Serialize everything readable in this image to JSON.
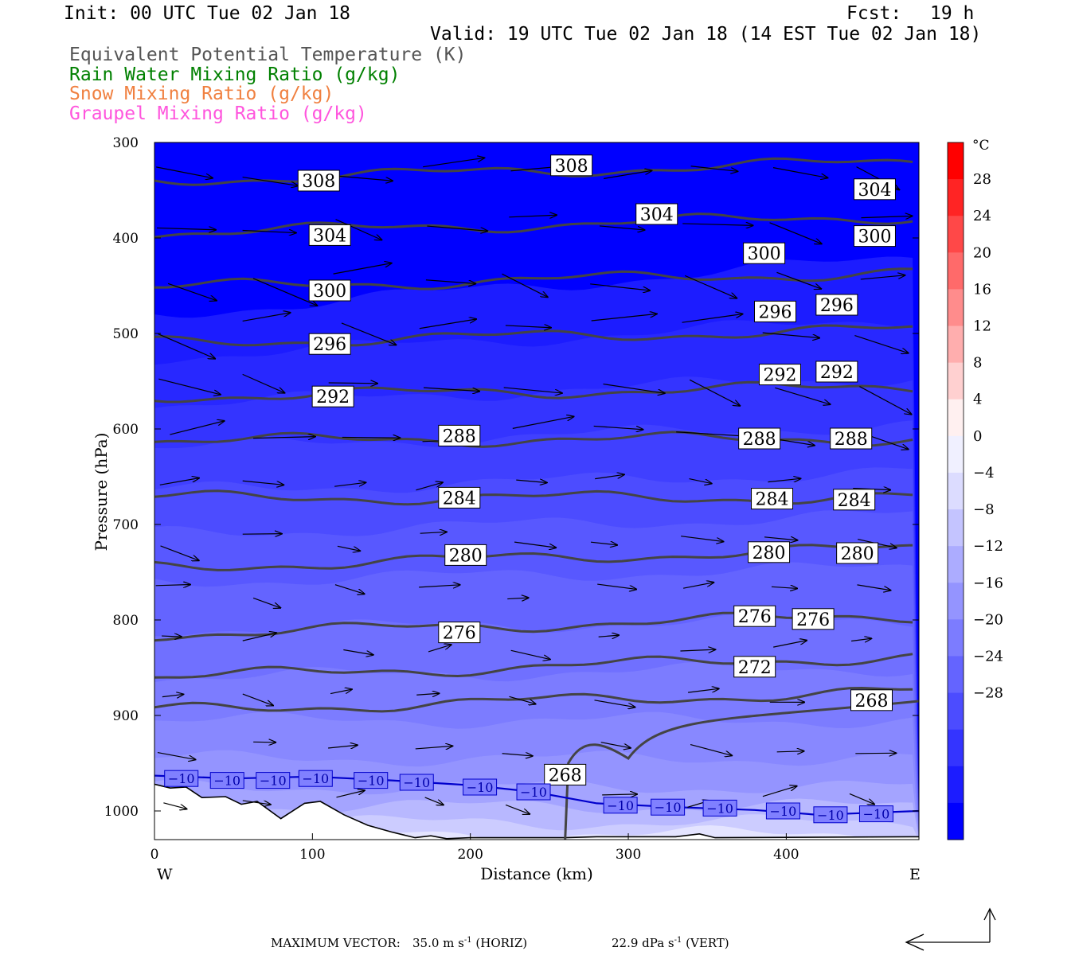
{
  "header": {
    "init": "Init: 00 UTC Tue 02 Jan 18",
    "fcst_label": "Fcst:",
    "fcst_value": "19 h",
    "valid": "Valid: 19 UTC Tue 02 Jan 18 (14 EST Tue 02 Jan 18)"
  },
  "legend": [
    {
      "label": "Equivalent Potential Temperature (K)",
      "color": "#555555"
    },
    {
      "label": "Rain Water Mixing Ratio (g/kg)",
      "color": "#008000"
    },
    {
      "label": "Snow Mixing Ratio (g/kg)",
      "color": "#f08040"
    },
    {
      "label": "Graupel Mixing Ratio (g/kg)",
      "color": "#ff55dd"
    }
  ],
  "footer": {
    "max_vector_label": "MAXIMUM VECTOR:",
    "horiz_value": "35.0 m s",
    "horiz_unit": "(HORIZ)",
    "vert_value": "22.9 dPa s",
    "vert_unit": "(VERT)",
    "exponent": "-1"
  },
  "chart_data": {
    "type": "cross-section",
    "xlabel": "Distance (km)",
    "ylabel": "Pressure (hPa)",
    "x_ticks": [
      0,
      100,
      200,
      300,
      400
    ],
    "xlim": [
      0,
      484
    ],
    "y_ticks": [
      300,
      400,
      500,
      600,
      700,
      800,
      900,
      1000
    ],
    "ylim": [
      300,
      1030
    ],
    "x_end_labels": {
      "left": "W",
      "right": "E"
    },
    "colorbar": {
      "unit": "°C",
      "tick_labels": [
        "28",
        "24",
        "20",
        "16",
        "12",
        "8",
        "4",
        "0",
        "−4",
        "−8",
        "−12",
        "−16",
        "−20",
        "−24",
        "−28"
      ],
      "colors": [
        "#ff0000",
        "#ff2424",
        "#ff4848",
        "#ff6a6a",
        "#ff8c8c",
        "#ffaeae",
        "#ffd0d0",
        "#fff0f0",
        "#f0f0ff",
        "#dcdcff",
        "#c4c4ff",
        "#acacff",
        "#9494ff",
        "#7c7cff",
        "#6464ff",
        "#4c4cff",
        "#3434ff",
        "#1c1cff",
        "#0000ff"
      ]
    },
    "theta_e_labels": [
      {
        "text": "308",
        "x": 104,
        "p": 340
      },
      {
        "text": "308",
        "x": 264,
        "p": 324
      },
      {
        "text": "304",
        "x": 318,
        "p": 375
      },
      {
        "text": "304",
        "x": 456,
        "p": 349
      },
      {
        "text": "304",
        "x": 111,
        "p": 397
      },
      {
        "text": "300",
        "x": 386,
        "p": 416
      },
      {
        "text": "300",
        "x": 456,
        "p": 398
      },
      {
        "text": "300",
        "x": 111,
        "p": 455
      },
      {
        "text": "296",
        "x": 393,
        "p": 477
      },
      {
        "text": "296",
        "x": 432,
        "p": 470
      },
      {
        "text": "296",
        "x": 111,
        "p": 511
      },
      {
        "text": "292",
        "x": 396,
        "p": 543
      },
      {
        "text": "292",
        "x": 432,
        "p": 540
      },
      {
        "text": "292",
        "x": 113,
        "p": 566
      },
      {
        "text": "288",
        "x": 193,
        "p": 607
      },
      {
        "text": "288",
        "x": 383,
        "p": 610
      },
      {
        "text": "288",
        "x": 441,
        "p": 610
      },
      {
        "text": "284",
        "x": 193,
        "p": 672
      },
      {
        "text": "284",
        "x": 391,
        "p": 673
      },
      {
        "text": "284",
        "x": 443,
        "p": 674
      },
      {
        "text": "280",
        "x": 197,
        "p": 732
      },
      {
        "text": "280",
        "x": 389,
        "p": 729
      },
      {
        "text": "280",
        "x": 445,
        "p": 730
      },
      {
        "text": "276",
        "x": 193,
        "p": 813
      },
      {
        "text": "276",
        "x": 380,
        "p": 796
      },
      {
        "text": "276",
        "x": 417,
        "p": 799
      },
      {
        "text": "272",
        "x": 380,
        "p": 849
      },
      {
        "text": "268",
        "x": 454,
        "p": 884
      },
      {
        "text": "268",
        "x": 260,
        "p": 962
      }
    ],
    "temp_minus10_labels": [
      {
        "text": "−10",
        "x": 17,
        "p": 966
      },
      {
        "text": "−10",
        "x": 46,
        "p": 968
      },
      {
        "text": "−10",
        "x": 75,
        "p": 968
      },
      {
        "text": "−10",
        "x": 102,
        "p": 966
      },
      {
        "text": "−10",
        "x": 137,
        "p": 968
      },
      {
        "text": "−10",
        "x": 166,
        "p": 970
      },
      {
        "text": "−10",
        "x": 206,
        "p": 975
      },
      {
        "text": "−10",
        "x": 240,
        "p": 980
      },
      {
        "text": "−10",
        "x": 295,
        "p": 994
      },
      {
        "text": "−10",
        "x": 325,
        "p": 996
      },
      {
        "text": "−10",
        "x": 358,
        "p": 997
      },
      {
        "text": "−10",
        "x": 398,
        "p": 1000
      },
      {
        "text": "−10",
        "x": 428,
        "p": 1004
      },
      {
        "text": "−10",
        "x": 457,
        "p": 1003
      }
    ]
  }
}
